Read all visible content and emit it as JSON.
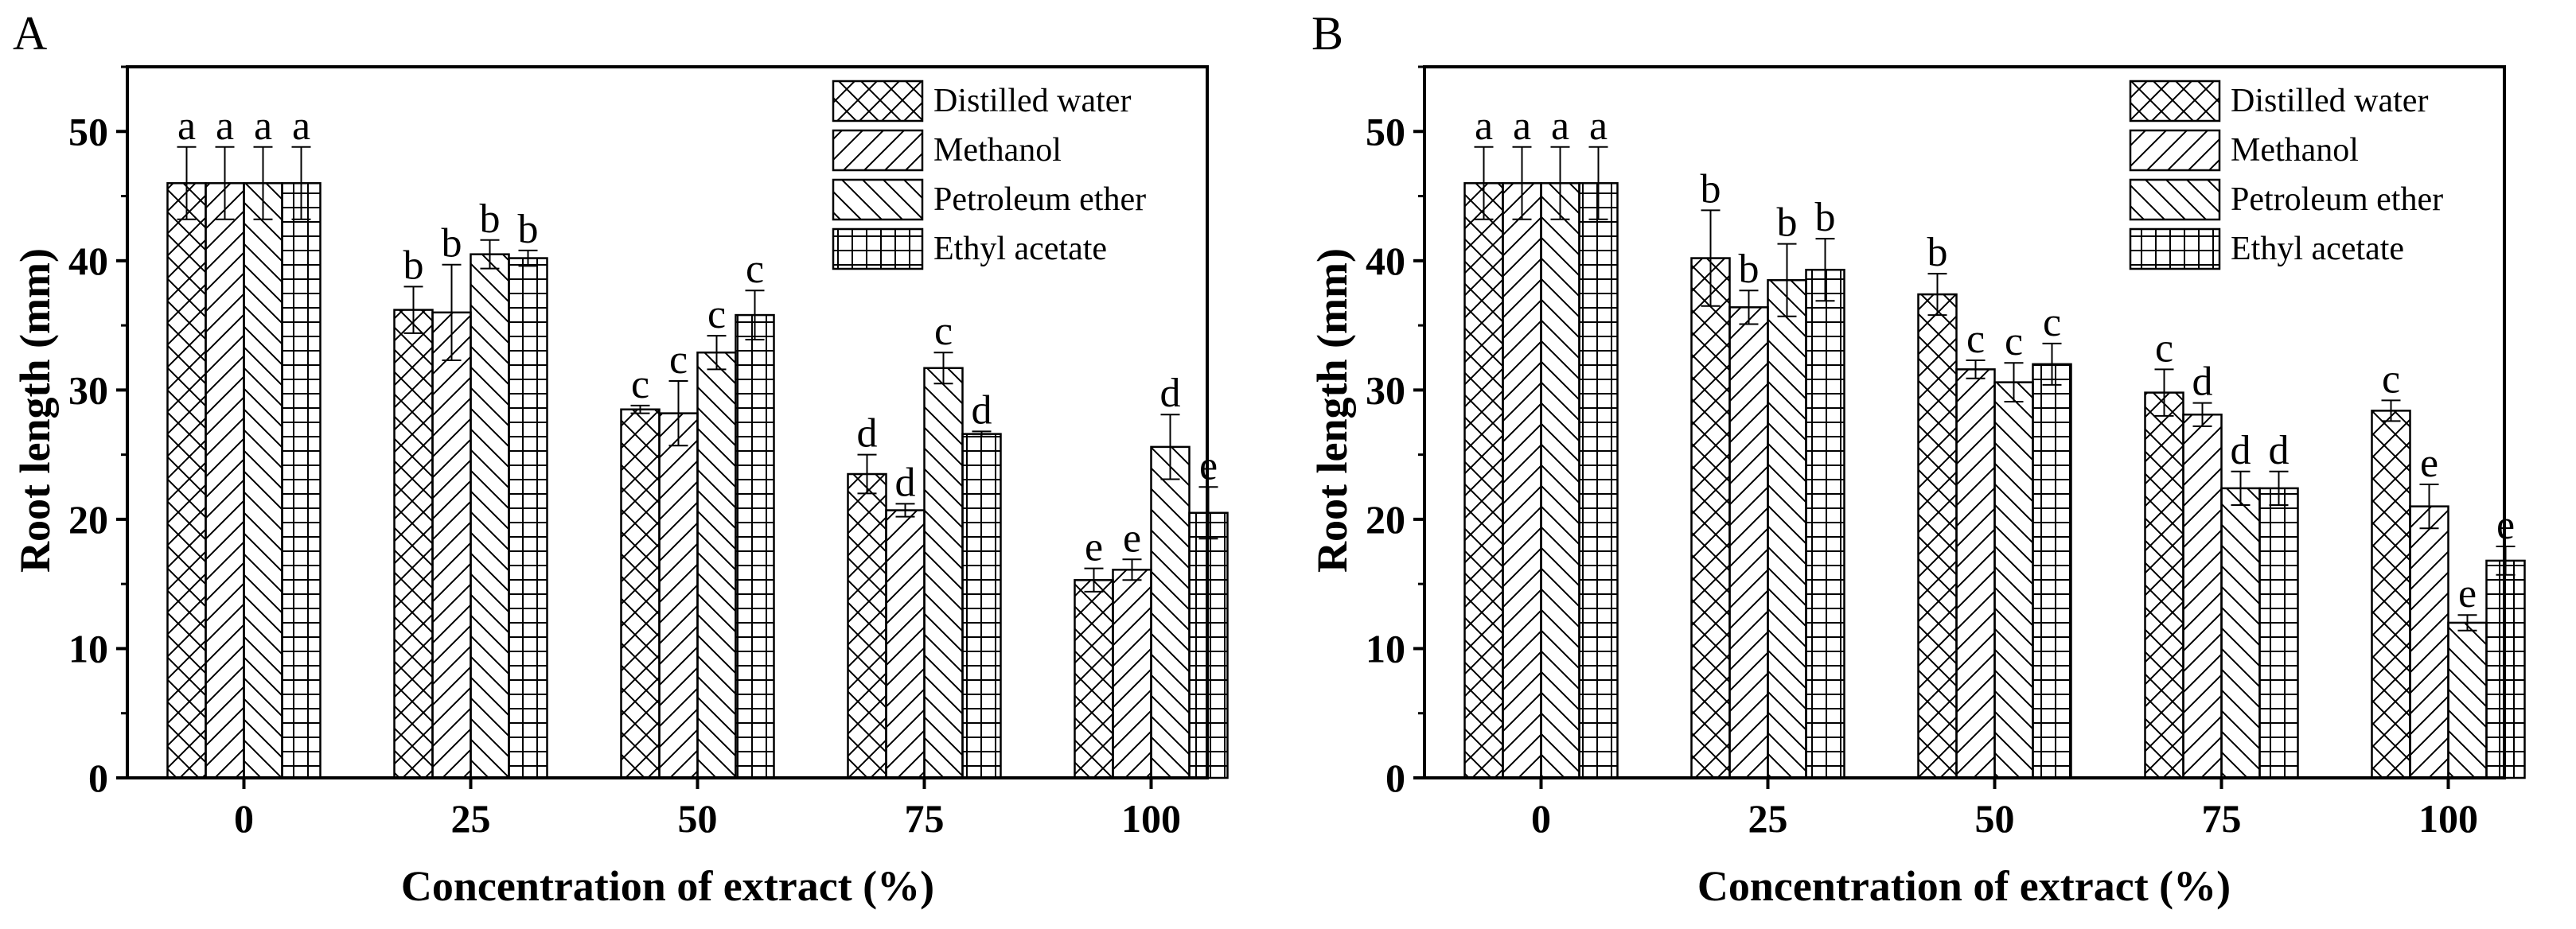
{
  "chart_data": [
    {
      "type": "bar",
      "panel": "A",
      "xlabel": "Concentration of extract (%)",
      "ylabel": "Root length (mm)",
      "categories": [
        "0",
        "25",
        "50",
        "75",
        "100"
      ],
      "ylim": [
        0,
        55
      ],
      "yticks": [
        0,
        10,
        20,
        30,
        40,
        50
      ],
      "legend_position": "top-right",
      "series": [
        {
          "name": "Distilled water",
          "pattern": "crosshatch",
          "values": [
            46.0,
            36.2,
            28.5,
            23.5,
            15.3
          ],
          "errors": [
            2.8,
            1.8,
            0.3,
            1.5,
            0.9
          ],
          "labels": [
            "a",
            "b",
            "c",
            "d",
            "e"
          ]
        },
        {
          "name": "Methanol",
          "pattern": "diagonal-forward",
          "values": [
            46.0,
            36.0,
            28.2,
            20.7,
            16.1
          ],
          "errors": [
            2.8,
            3.7,
            2.5,
            0.5,
            0.8
          ],
          "labels": [
            "a",
            "b",
            "c",
            "d",
            "e"
          ]
        },
        {
          "name": "Petroleum ether",
          "pattern": "diagonal-backward",
          "values": [
            46.0,
            40.5,
            32.9,
            31.7,
            25.6
          ],
          "errors": [
            2.8,
            1.1,
            1.3,
            1.2,
            2.5
          ],
          "labels": [
            "a",
            "b",
            "c",
            "c",
            "d"
          ]
        },
        {
          "name": "Ethyl acetate",
          "pattern": "grid",
          "values": [
            46.0,
            40.2,
            35.8,
            26.6,
            20.5
          ],
          "errors": [
            2.8,
            0.6,
            1.9,
            0.2,
            2.0
          ],
          "labels": [
            "a",
            "b",
            "c",
            "d",
            "e"
          ]
        }
      ]
    },
    {
      "type": "bar",
      "panel": "B",
      "xlabel": "Concentration of extract (%)",
      "ylabel": "Root length (mm)",
      "categories": [
        "0",
        "25",
        "50",
        "75",
        "100"
      ],
      "ylim": [
        0,
        55
      ],
      "yticks": [
        0,
        10,
        20,
        30,
        40,
        50
      ],
      "legend_position": "top-right",
      "series": [
        {
          "name": "Distilled water",
          "pattern": "crosshatch",
          "values": [
            46.0,
            40.2,
            37.4,
            29.8,
            28.4
          ],
          "errors": [
            2.8,
            3.7,
            1.6,
            1.8,
            0.8
          ],
          "labels": [
            "a",
            "b",
            "b",
            "c",
            "c"
          ]
        },
        {
          "name": "Methanol",
          "pattern": "diagonal-forward",
          "values": [
            46.0,
            36.4,
            31.6,
            28.1,
            21.0
          ],
          "errors": [
            2.8,
            1.3,
            0.7,
            0.9,
            1.7
          ],
          "labels": [
            "a",
            "b",
            "c",
            "d",
            "e"
          ]
        },
        {
          "name": "Petroleum ether",
          "pattern": "diagonal-backward",
          "values": [
            46.0,
            38.5,
            30.6,
            22.4,
            12.0
          ],
          "errors": [
            2.8,
            2.8,
            1.5,
            1.3,
            0.6
          ],
          "labels": [
            "a",
            "b",
            "c",
            "d",
            "e"
          ]
        },
        {
          "name": "Ethyl acetate",
          "pattern": "grid",
          "values": [
            46.0,
            39.3,
            32.0,
            22.4,
            16.8
          ],
          "errors": [
            2.8,
            2.4,
            1.6,
            1.3,
            1.1
          ],
          "labels": [
            "a",
            "b",
            "c",
            "d",
            "e"
          ]
        }
      ]
    }
  ]
}
